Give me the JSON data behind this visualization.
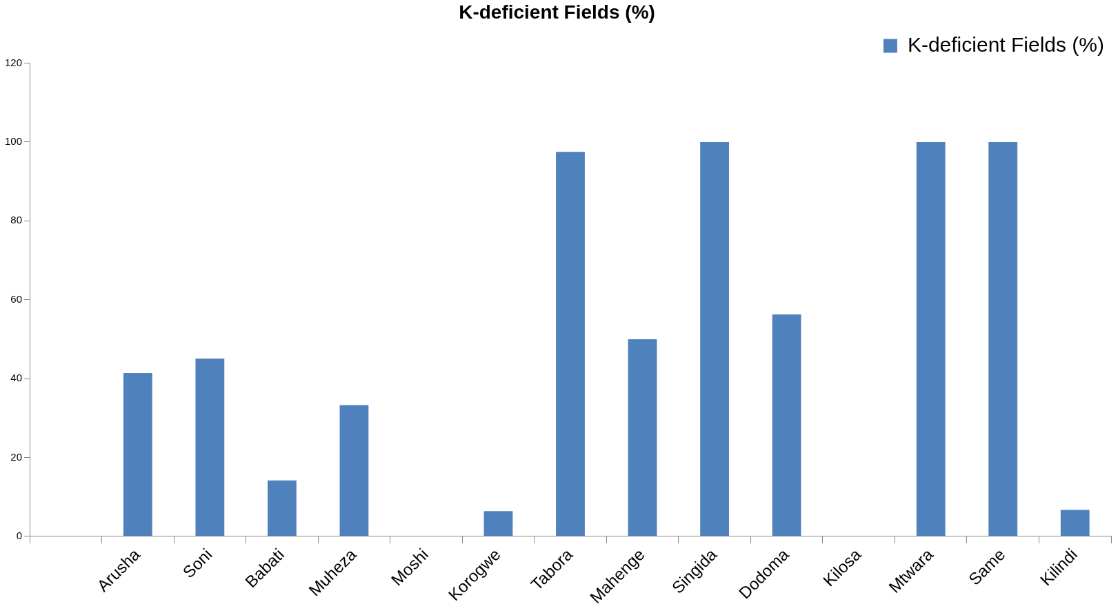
{
  "chart_data": {
    "type": "bar",
    "title": "K-deficient Fields (%)",
    "categories": [
      null,
      "Arusha",
      "Soni",
      "Babati",
      "Muheza",
      "Moshi",
      "Korogwe",
      "Tabora",
      "Mahenge",
      "Singida",
      "Dodoma",
      "Kilosa",
      "Mtwara",
      "Same",
      "Kilindi"
    ],
    "series": [
      {
        "name": "K-deficient Fields (%)",
        "color": "#4f81bd",
        "values": [
          null,
          41.4,
          45.1,
          14.2,
          33.3,
          0,
          6.4,
          97.5,
          50,
          100,
          56.3,
          0,
          100,
          100,
          6.7
        ]
      }
    ],
    "ylim": [
      0,
      120
    ],
    "yticks": [
      0,
      20,
      40,
      60,
      80,
      100,
      120
    ],
    "grid": false,
    "legend": "top right"
  }
}
